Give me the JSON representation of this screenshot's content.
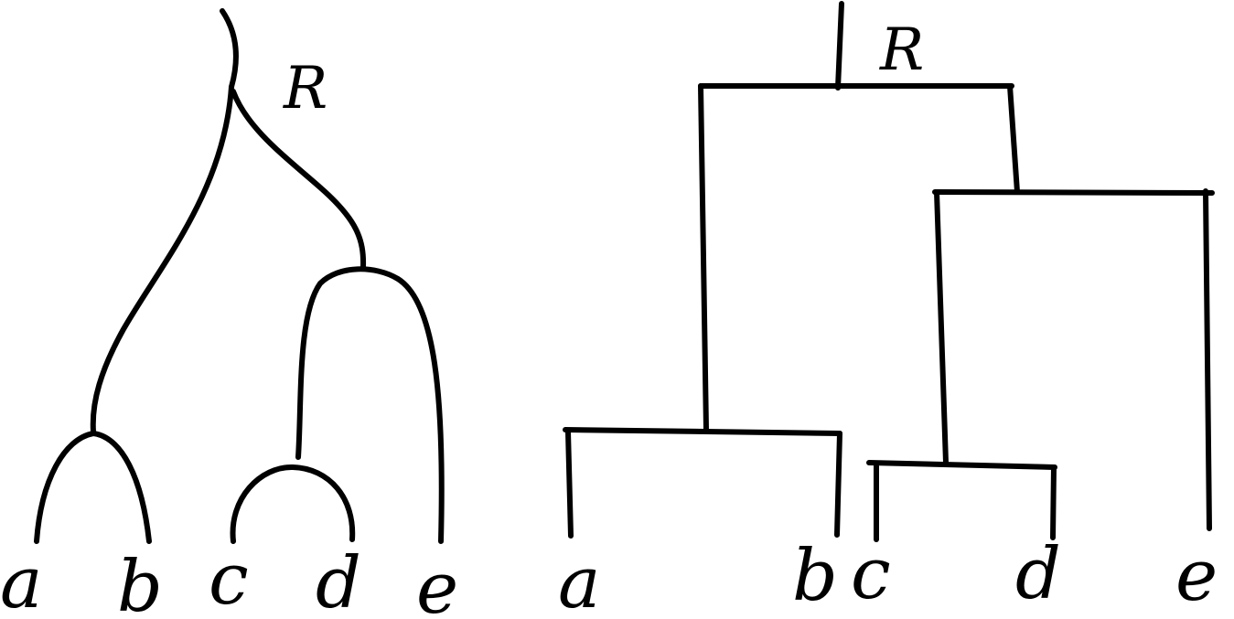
{
  "diagrams": [
    {
      "id": "curved-tree",
      "root_label": "R",
      "leaves": [
        "a",
        "b",
        "c",
        "d",
        "e"
      ]
    },
    {
      "id": "bracket-tree",
      "root_label": "R",
      "leaves": [
        "a",
        "b",
        "c",
        "d",
        "e"
      ]
    }
  ]
}
